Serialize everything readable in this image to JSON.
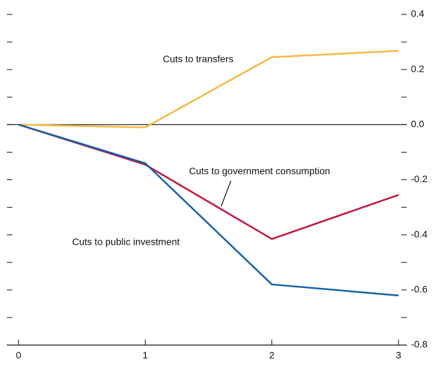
{
  "chart_data": {
    "type": "line",
    "x": [
      0,
      1,
      2,
      3
    ],
    "xlim": [
      0,
      3
    ],
    "xticks": [
      0,
      1,
      2,
      3
    ],
    "ylim": [
      -0.8,
      0.4
    ],
    "yticks": [
      0.4,
      0.2,
      {
        "value": 0,
        "label": "0.0"
      },
      -0.2,
      -0.4,
      -0.6,
      -0.8
    ],
    "yticks_minor": [
      0.3,
      0.1,
      -0.1,
      -0.3,
      -0.5,
      -0.7
    ],
    "series": [
      {
        "name": "Cuts to transfers",
        "color": "#f5b841",
        "values": [
          0,
          -0.01,
          0.245,
          0.268
        ]
      },
      {
        "name": "Cuts to government consumption",
        "color": "#c0143c",
        "values": [
          0,
          -0.145,
          -0.415,
          -0.255
        ]
      },
      {
        "name": "Cuts to public investment",
        "color": "#1560a8",
        "values": [
          0,
          -0.14,
          -0.58,
          -0.62
        ]
      }
    ]
  }
}
